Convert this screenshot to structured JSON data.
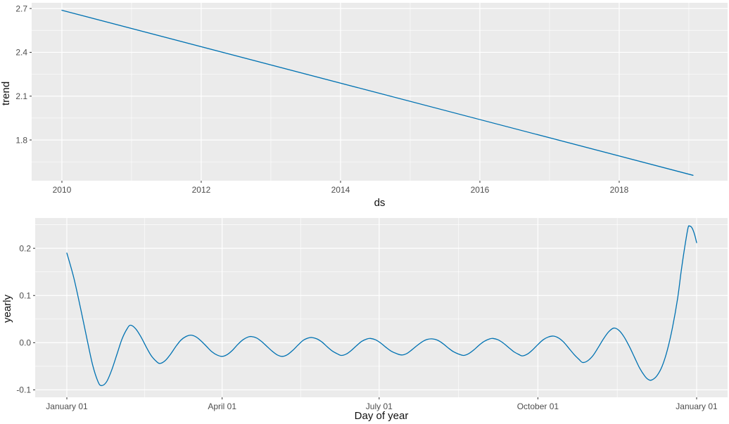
{
  "figure": {
    "background": "#ffffff",
    "panel_background": "#ebebeb",
    "grid_major_color": "#ffffff",
    "grid_minor_color": "#ffffff",
    "tick_mark_color": "#333333",
    "tick_label_color": "#4d4d4d",
    "axis_title_color": "#111111",
    "line_color": "#0072b2"
  },
  "chart_data": [
    {
      "type": "line",
      "title": "",
      "xlabel": "ds",
      "ylabel": "trend",
      "grid": true,
      "legend": false,
      "xlim": [
        2009.566,
        2019.556
      ],
      "ylim": [
        1.521,
        2.739
      ],
      "x_ticks": {
        "values": [
          2010,
          2012,
          2014,
          2016,
          2018
        ],
        "labels": [
          "2010",
          "2012",
          "2014",
          "2016",
          "2018"
        ]
      },
      "x_minor": [
        2011,
        2013,
        2015,
        2017,
        2019
      ],
      "y_ticks": {
        "values": [
          1.8,
          2.1,
          2.4,
          2.7
        ],
        "labels": [
          "1.8",
          "2.1",
          "2.4",
          "2.7"
        ]
      },
      "y_minor": [
        1.65,
        1.95,
        2.25,
        2.55
      ],
      "series": [
        {
          "name": "trend",
          "x": [
            2010.0,
            2019.06
          ],
          "y": [
            2.688,
            1.558
          ]
        }
      ]
    },
    {
      "type": "line",
      "title": "",
      "xlabel": "Day of year",
      "ylabel": "yearly",
      "grid": true,
      "legend": false,
      "xlim": [
        -18.35,
        382.95
      ],
      "ylim": [
        -0.1157,
        0.2643
      ],
      "x_ticks": {
        "values": [
          0,
          90,
          181,
          273,
          365
        ],
        "labels": [
          "January 01",
          "April 01",
          "July 01",
          "October 01",
          "January 01"
        ]
      },
      "x_minor": [
        45,
        135.5,
        227,
        319
      ],
      "y_ticks": {
        "values": [
          -0.1,
          0.0,
          0.1,
          0.2
        ],
        "labels": [
          "-0.1",
          "0.0",
          "0.1",
          "0.2"
        ]
      },
      "y_minor": [
        -0.05,
        0.05,
        0.15,
        0.25
      ],
      "series": [
        {
          "name": "yearly",
          "x": [
            0,
            4,
            8,
            12,
            15,
            18,
            20,
            23,
            26,
            29,
            32,
            35,
            37,
            40,
            43,
            46,
            49,
            52,
            54,
            57,
            60,
            63,
            66,
            69,
            72,
            75,
            78,
            81,
            84,
            87,
            90,
            93,
            96,
            99,
            102,
            105,
            107,
            110,
            113,
            116,
            119,
            122,
            125,
            128,
            131,
            134,
            137,
            140,
            142,
            145,
            148,
            151,
            154,
            157,
            159,
            162,
            165,
            168,
            171,
            174,
            176,
            179,
            182,
            185,
            188,
            191,
            194,
            197,
            200,
            203,
            206,
            209,
            212,
            215,
            218,
            221,
            224,
            227,
            230,
            233,
            236,
            239,
            242,
            245,
            247,
            250,
            253,
            256,
            259,
            262,
            264,
            267,
            270,
            273,
            276,
            279,
            282,
            285,
            288,
            291,
            294,
            297,
            299,
            302,
            305,
            308,
            311,
            314,
            317,
            320,
            323,
            326,
            329,
            332,
            335,
            337,
            339,
            342,
            345,
            348,
            351,
            354,
            356,
            358,
            360,
            361,
            362,
            363,
            364,
            365
          ],
          "y": [
            0.19,
            0.138,
            0.072,
            0.002,
            -0.048,
            -0.082,
            -0.091,
            -0.083,
            -0.058,
            -0.025,
            0.008,
            0.03,
            0.037,
            0.029,
            0.012,
            -0.009,
            -0.028,
            -0.04,
            -0.044,
            -0.038,
            -0.025,
            -0.009,
            0.005,
            0.013,
            0.016,
            0.012,
            0.003,
            -0.008,
            -0.019,
            -0.026,
            -0.029,
            -0.025,
            -0.016,
            -0.004,
            0.006,
            0.012,
            0.013,
            0.01,
            0.002,
            -0.008,
            -0.018,
            -0.026,
            -0.029,
            -0.025,
            -0.016,
            -0.005,
            0.005,
            0.01,
            0.011,
            0.008,
            0.001,
            -0.009,
            -0.018,
            -0.024,
            -0.027,
            -0.024,
            -0.016,
            -0.006,
            0.003,
            0.008,
            0.009,
            0.006,
            -0.001,
            -0.01,
            -0.018,
            -0.023,
            -0.026,
            -0.023,
            -0.015,
            -0.006,
            0.002,
            0.007,
            0.008,
            0.005,
            -0.002,
            -0.011,
            -0.019,
            -0.024,
            -0.027,
            -0.023,
            -0.015,
            -0.005,
            0.003,
            0.008,
            0.009,
            0.006,
            -0.001,
            -0.01,
            -0.019,
            -0.025,
            -0.028,
            -0.024,
            -0.015,
            -0.004,
            0.006,
            0.012,
            0.014,
            0.01,
            0.001,
            -0.012,
            -0.025,
            -0.036,
            -0.042,
            -0.038,
            -0.027,
            -0.01,
            0.008,
            0.023,
            0.031,
            0.026,
            0.012,
            -0.008,
            -0.031,
            -0.054,
            -0.071,
            -0.078,
            -0.079,
            -0.07,
            -0.05,
            -0.016,
            0.032,
            0.094,
            0.15,
            0.2,
            0.243,
            0.247,
            0.245,
            0.238,
            0.227,
            0.212
          ]
        }
      ]
    }
  ]
}
